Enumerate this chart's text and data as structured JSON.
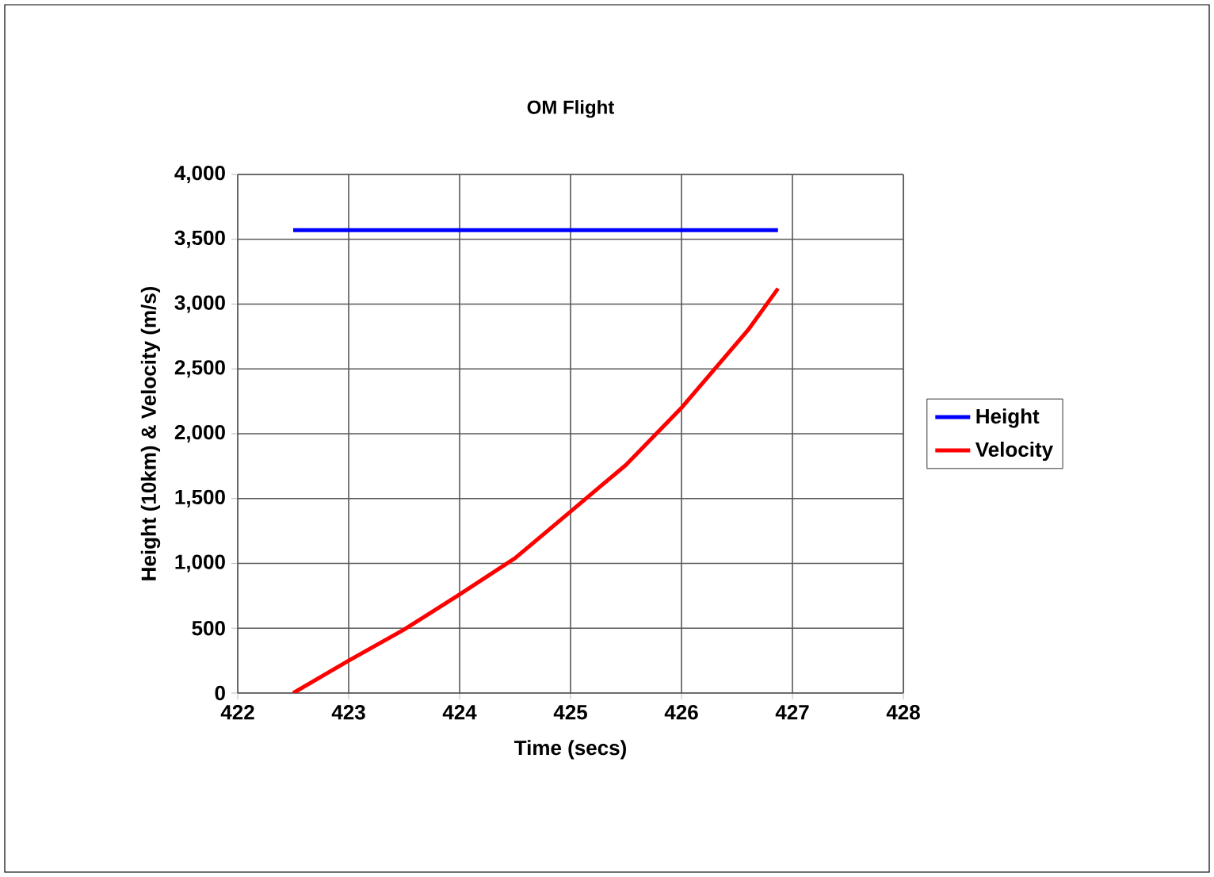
{
  "chart_data": {
    "type": "line",
    "title": "OM Flight",
    "xlabel": "Time (secs)",
    "ylabel": "Height (10km) & Velocity (m/s)",
    "xlim": [
      422,
      428
    ],
    "xticks": [
      422,
      423,
      424,
      425,
      426,
      427,
      428
    ],
    "ylim": [
      0,
      4000
    ],
    "yticks": [
      {
        "value": 0,
        "label": "0"
      },
      {
        "value": 500,
        "label": "500"
      },
      {
        "value": 1000,
        "label": "1,000"
      },
      {
        "value": 1500,
        "label": "1,500"
      },
      {
        "value": 2000,
        "label": "2,000"
      },
      {
        "value": 2500,
        "label": "2,500"
      },
      {
        "value": 3000,
        "label": "3,000"
      },
      {
        "value": 3500,
        "label": "3,500"
      },
      {
        "value": 4000,
        "label": "4,000"
      }
    ],
    "grid": true,
    "legend": "right",
    "marker": "none",
    "series": [
      {
        "name": "Height",
        "color": "#0000ff",
        "x": [
          422.5,
          423.5,
          424.5,
          425.5,
          426.5,
          426.87
        ],
        "values": [
          3570,
          3570,
          3570,
          3570,
          3570,
          3570
        ]
      },
      {
        "name": "Velocity",
        "color": "#ff0000",
        "x": [
          422.5,
          423.0,
          423.5,
          424.0,
          424.5,
          425.0,
          425.5,
          426.0,
          426.4,
          426.6,
          426.87
        ],
        "values": [
          0,
          250,
          490,
          760,
          1040,
          1400,
          1760,
          2200,
          2600,
          2800,
          3120
        ]
      }
    ]
  }
}
